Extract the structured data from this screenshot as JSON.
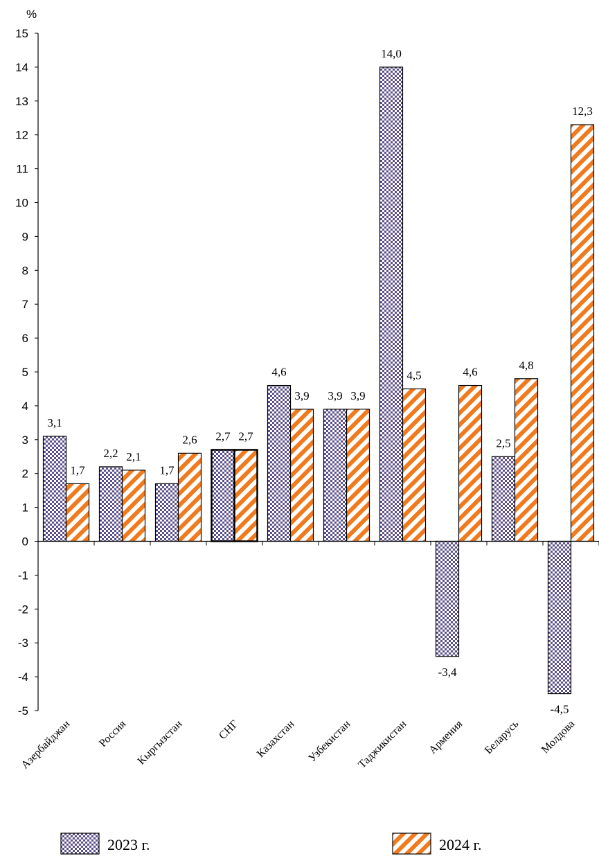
{
  "chart_data": {
    "type": "bar",
    "ylabel": "%",
    "ylim": [
      -5,
      15
    ],
    "ytick_step": 1,
    "categories": [
      "Азербайджан",
      "Россия",
      "Кыргызстан",
      "СНГ",
      "Казахстан",
      "Узбекистан",
      "Таджикистан",
      "Армения",
      "Беларусь",
      "Молдова"
    ],
    "series": [
      {
        "name": "2023 г.",
        "values": [
          3.1,
          2.2,
          1.7,
          2.7,
          4.6,
          3.9,
          14.0,
          -3.4,
          2.5,
          -4.5
        ],
        "labels": [
          "3,1",
          "2,2",
          "1,7",
          "2,7",
          "4,6",
          "3,9",
          "14,0",
          "-3,4",
          "2,5",
          "-4,5"
        ],
        "pattern": "checker",
        "color": "#5b4f8c"
      },
      {
        "name": "2024 г.",
        "values": [
          1.7,
          2.1,
          2.6,
          2.7,
          3.9,
          3.9,
          4.5,
          4.6,
          4.8,
          12.3
        ],
        "labels": [
          "1,7",
          "2,1",
          "2,6",
          "2,7",
          "3,9",
          "3,9",
          "4,5",
          "4,6",
          "4,8",
          "12,3"
        ],
        "pattern": "diagonal-stripes",
        "color": "#f07a1e"
      }
    ],
    "highlighted_category": "СНГ",
    "grid": false,
    "legend_position": "bottom"
  }
}
